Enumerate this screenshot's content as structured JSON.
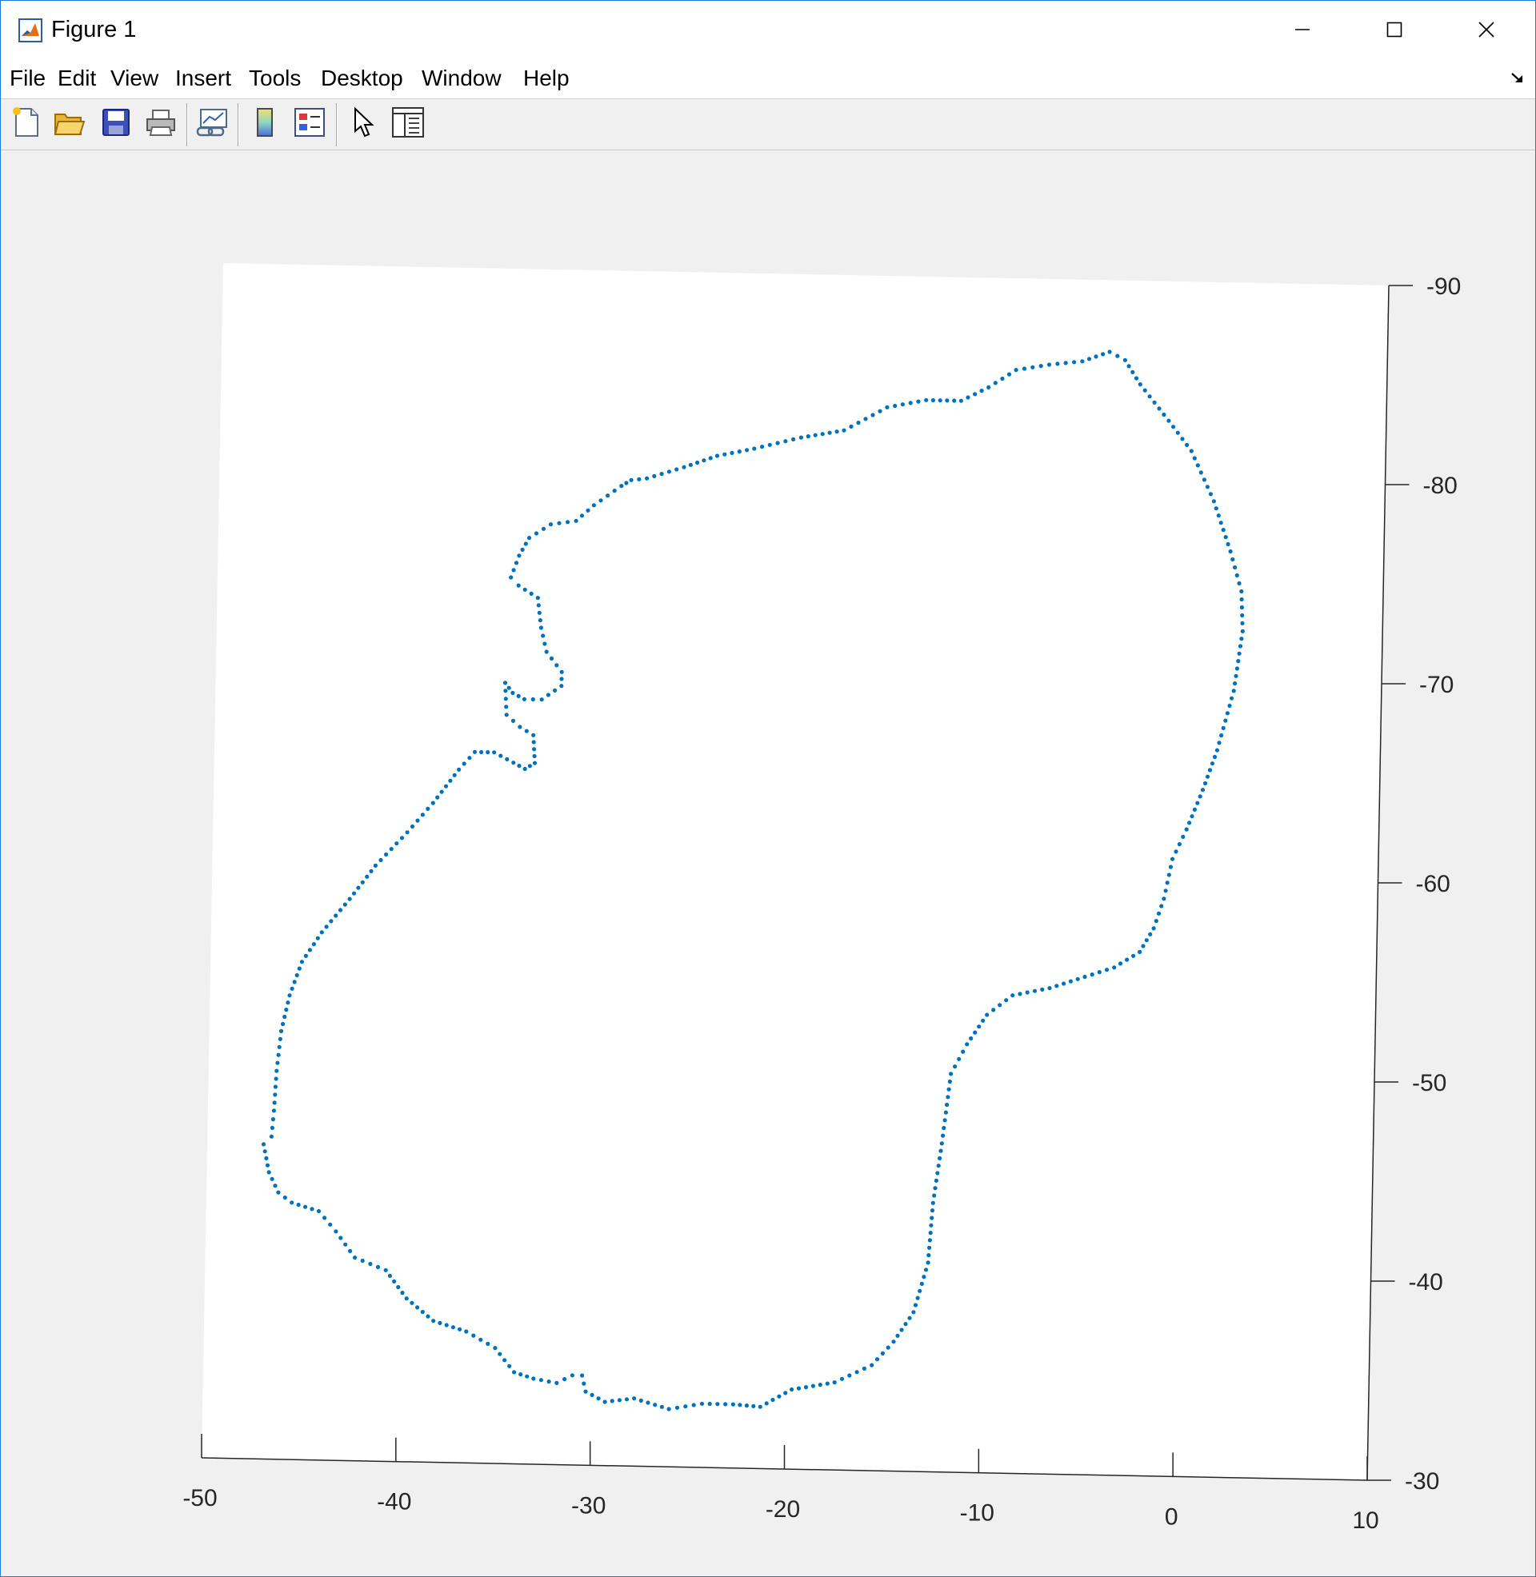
{
  "window": {
    "title": "Figure 1",
    "controls": {
      "minimize": "minimize",
      "maximize": "maximize",
      "close": "close"
    }
  },
  "menu": {
    "items": [
      "File",
      "Edit",
      "View",
      "Insert",
      "Tools",
      "Desktop",
      "Window",
      "Help"
    ]
  },
  "toolbar": {
    "buttons": [
      "new-figure-icon",
      "open-file-icon",
      "save-icon",
      "print-icon",
      "link-plot-icon",
      "insert-colorbar-icon",
      "insert-legend-icon",
      "edit-plot-cursor-icon",
      "property-inspector-icon"
    ]
  },
  "colors": {
    "accent": "#1c7bd6",
    "points": "#0072bd",
    "axes": "#262626"
  },
  "chart_data": {
    "type": "scatter",
    "view": "3-D view, rotated",
    "marker": "dot",
    "xlim": [
      -50,
      10
    ],
    "ylim": [
      -90,
      -30
    ],
    "xticks": [
      "-50",
      "-40",
      "-30",
      "-20",
      "-10",
      "0",
      "10"
    ],
    "yticks": [
      "-90",
      "-80",
      "-70",
      "-60",
      "-50",
      "-40",
      "-30"
    ],
    "outline": [
      [
        -30.5,
        -34.5
      ],
      [
        -30.3,
        -33.7
      ],
      [
        -29.3,
        -33.2
      ],
      [
        -27.8,
        -33.4
      ],
      [
        -26.0,
        -32.9
      ],
      [
        -24.3,
        -33.2
      ],
      [
        -22.7,
        -33.2
      ],
      [
        -21.3,
        -33.1
      ],
      [
        -19.7,
        -34.0
      ],
      [
        -17.5,
        -34.4
      ],
      [
        -15.6,
        -35.3
      ],
      [
        -14.5,
        -36.5
      ],
      [
        -13.5,
        -38.0
      ],
      [
        -12.8,
        -40.5
      ],
      [
        -12.6,
        -43.5
      ],
      [
        -12.2,
        -46.5
      ],
      [
        -11.8,
        -50.0
      ],
      [
        -11.0,
        -51.5
      ],
      [
        -10.0,
        -53.0
      ],
      [
        -8.7,
        -54.0
      ],
      [
        -6.8,
        -54.4
      ],
      [
        -5.0,
        -55.0
      ],
      [
        -3.5,
        -55.5
      ],
      [
        -2.2,
        -56.3
      ],
      [
        -1.5,
        -57.5
      ],
      [
        -1.0,
        -59.0
      ],
      [
        -0.6,
        -61.0
      ],
      [
        0.1,
        -62.5
      ],
      [
        0.9,
        -64.5
      ],
      [
        1.6,
        -66.5
      ],
      [
        2.4,
        -69.5
      ],
      [
        2.8,
        -72.5
      ],
      [
        2.7,
        -74.5
      ],
      [
        2.1,
        -76.5
      ],
      [
        1.2,
        -79.0
      ],
      [
        0.0,
        -81.5
      ],
      [
        -1.2,
        -83.0
      ],
      [
        -2.7,
        -84.8
      ],
      [
        -3.5,
        -86.0
      ],
      [
        -4.3,
        -86.4
      ],
      [
        -5.7,
        -85.9
      ],
      [
        -7.4,
        -85.7
      ],
      [
        -9.1,
        -85.4
      ],
      [
        -10.5,
        -84.5
      ],
      [
        -11.9,
        -83.8
      ],
      [
        -13.7,
        -83.8
      ],
      [
        -15.7,
        -83.4
      ],
      [
        -17.9,
        -82.2
      ],
      [
        -20.1,
        -81.8
      ],
      [
        -22.5,
        -81.2
      ],
      [
        -24.4,
        -80.8
      ],
      [
        -26.1,
        -80.2
      ],
      [
        -28.0,
        -79.6
      ],
      [
        -28.8,
        -79.5
      ],
      [
        -29.3,
        -79.2
      ],
      [
        -30.7,
        -78.2
      ],
      [
        -31.6,
        -77.4
      ],
      [
        -32.9,
        -77.2
      ],
      [
        -34.0,
        -76.5
      ],
      [
        -34.5,
        -75.6
      ],
      [
        -34.9,
        -74.5
      ],
      [
        -34.5,
        -74.1
      ],
      [
        -33.5,
        -73.5
      ],
      [
        -33.3,
        -72.0
      ],
      [
        -33.0,
        -70.8
      ],
      [
        -32.2,
        -69.8
      ],
      [
        -32.2,
        -69.1
      ],
      [
        -33.2,
        -68.4
      ],
      [
        -34.1,
        -68.4
      ],
      [
        -34.7,
        -68.7
      ],
      [
        -35.1,
        -69.2
      ],
      [
        -35.0,
        -67.6
      ],
      [
        -34.3,
        -67.0
      ],
      [
        -33.6,
        -66.6
      ],
      [
        -33.5,
        -65.2
      ],
      [
        -34.0,
        -64.9
      ],
      [
        -34.6,
        -65.2
      ],
      [
        -35.6,
        -65.7
      ],
      [
        -36.6,
        -65.7
      ],
      [
        -37.4,
        -64.8
      ],
      [
        -38.7,
        -63.1
      ],
      [
        -40.0,
        -61.6
      ],
      [
        -41.6,
        -59.9
      ],
      [
        -42.9,
        -58.2
      ],
      [
        -44.3,
        -56.5
      ],
      [
        -45.3,
        -55.0
      ],
      [
        -45.9,
        -53.3
      ],
      [
        -46.3,
        -51.5
      ],
      [
        -46.5,
        -49.5
      ],
      [
        -46.6,
        -47.5
      ],
      [
        -46.7,
        -46.2
      ],
      [
        -47.1,
        -45.8
      ],
      [
        -46.8,
        -44.4
      ],
      [
        -46.3,
        -43.4
      ],
      [
        -45.6,
        -42.9
      ],
      [
        -44.2,
        -42.5
      ],
      [
        -43.3,
        -41.5
      ],
      [
        -42.3,
        -40.2
      ],
      [
        -40.7,
        -39.6
      ],
      [
        -39.6,
        -38.2
      ],
      [
        -38.2,
        -37.1
      ],
      [
        -36.5,
        -36.6
      ],
      [
        -35.0,
        -35.8
      ],
      [
        -34.0,
        -34.6
      ],
      [
        -33.0,
        -34.3
      ],
      [
        -31.8,
        -34.1
      ],
      [
        -31.0,
        -34.5
      ],
      [
        -30.5,
        -34.5
      ]
    ]
  }
}
